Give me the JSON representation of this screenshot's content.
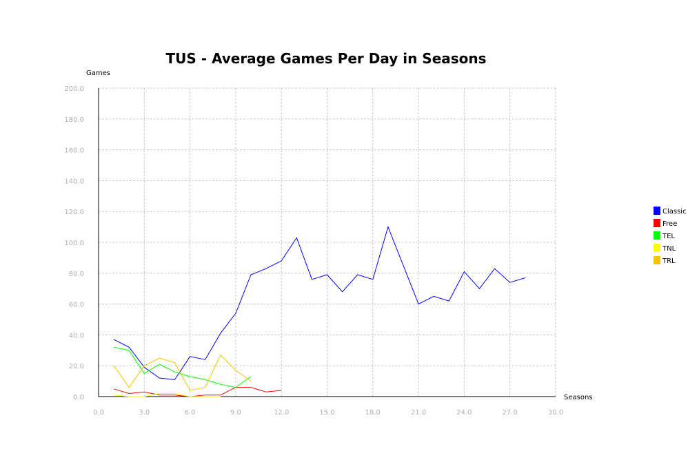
{
  "chart_data": {
    "type": "line",
    "title": "TUS - Average Games Per Day in Seasons",
    "xlabel": "Seasons",
    "ylabel": "Games",
    "xlim": [
      0,
      30
    ],
    "ylim": [
      0,
      200
    ],
    "xticks": [
      "0.0",
      "3.0",
      "6.0",
      "9.0",
      "12.0",
      "15.0",
      "18.0",
      "21.0",
      "24.0",
      "27.0",
      "30.0"
    ],
    "yticks": [
      "0.0",
      "20.0",
      "40.0",
      "60.0",
      "80.0",
      "100.0",
      "120.0",
      "140.0",
      "160.0",
      "180.0",
      "200.0"
    ],
    "grid": true,
    "legend_position": "right",
    "series": [
      {
        "name": "Classic",
        "color": "#0000ff",
        "x": [
          1,
          2,
          3,
          4,
          5,
          6,
          7,
          8,
          9,
          10,
          11,
          12,
          13,
          14,
          15,
          16,
          17,
          18,
          19,
          20,
          21,
          22,
          23,
          24,
          25,
          26,
          27,
          28
        ],
        "y": [
          37,
          32,
          19,
          12,
          11,
          26,
          24,
          41,
          54,
          79,
          83,
          88,
          103,
          76,
          79,
          68,
          79,
          76,
          110,
          85,
          60,
          65,
          62,
          81,
          70,
          83,
          74,
          77
        ]
      },
      {
        "name": "Free",
        "color": "#ff0000",
        "x": [
          1,
          2,
          3,
          4,
          5,
          6,
          7,
          8,
          9,
          10,
          11,
          12
        ],
        "y": [
          5,
          2,
          3,
          1,
          1,
          0,
          1,
          1,
          6,
          6,
          3,
          4
        ]
      },
      {
        "name": "TEL",
        "color": "#00ff00",
        "x": [
          1,
          2,
          3,
          4,
          5,
          6,
          7,
          8,
          9,
          10
        ],
        "y": [
          32,
          30,
          15,
          21,
          16,
          13,
          11,
          8,
          6,
          13
        ]
      },
      {
        "name": "TNL",
        "color": "#ffff00",
        "x": [
          1,
          2,
          3,
          4,
          5,
          6,
          7,
          8
        ],
        "y": [
          1,
          0,
          0,
          2,
          2,
          0,
          0,
          0
        ]
      },
      {
        "name": "TRL",
        "color": "#f5c400",
        "x": [
          1,
          2,
          3,
          4,
          5,
          6,
          7,
          8,
          9,
          10
        ],
        "y": [
          20,
          6,
          20,
          25,
          22,
          4,
          6,
          27,
          17,
          10
        ]
      }
    ]
  }
}
